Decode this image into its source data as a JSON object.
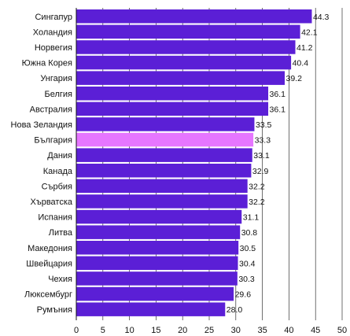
{
  "chart_data": {
    "type": "bar",
    "orientation": "horizontal",
    "categories": [
      "Сингапур",
      "Холандия",
      "Норвегия",
      "Южна Корея",
      "Унгария",
      "Белгия",
      "Австралия",
      "Нова Зеландия",
      "България",
      "Дания",
      "Канада",
      "Сърбия",
      "Хърватска",
      "Испания",
      "Литва",
      "Македония",
      "Швейцария",
      "Чехия",
      "Люксембург",
      "Румъния"
    ],
    "values": [
      44.3,
      42.1,
      41.2,
      40.4,
      39.2,
      36.1,
      36.1,
      33.5,
      33.3,
      33.1,
      32.9,
      32.2,
      32.2,
      31.1,
      30.8,
      30.5,
      30.4,
      30.3,
      29.6,
      28.0
    ],
    "value_labels": [
      "44.3",
      "42.1",
      "41.2",
      "40.4",
      "39.2",
      "36.1",
      "36.1",
      "33.5",
      "33.3",
      "33.1",
      "32.9",
      "32.2",
      "32.2",
      "31.1",
      "30.8",
      "30.5",
      "30.4",
      "30.3",
      "29.6",
      "28.0"
    ],
    "highlight": "България",
    "colors": {
      "bar": "#5b1fd6",
      "highlight": "#e676ff",
      "grid": "#333333"
    },
    "xlim": [
      0,
      50
    ],
    "x_ticks": [
      "0",
      "5",
      "10",
      "15",
      "20",
      "25",
      "30",
      "35",
      "40",
      "45",
      "50"
    ],
    "grid": true,
    "title": "",
    "xlabel": "",
    "ylabel": ""
  }
}
